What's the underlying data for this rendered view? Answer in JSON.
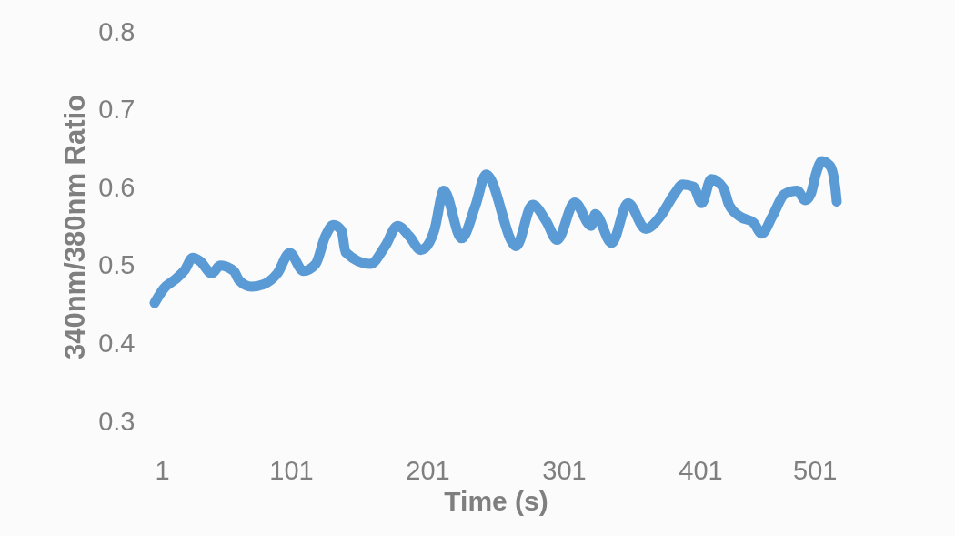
{
  "chart_data": {
    "type": "line",
    "xlabel": "Time (s)",
    "ylabel": "340nm/380nm Ratio",
    "xlim": [
      1,
      501
    ],
    "xticks": [
      1,
      101,
      201,
      301,
      401,
      501
    ],
    "ylim": [
      0.3,
      0.8
    ],
    "yticks": [
      0.3,
      0.4,
      0.5,
      0.6,
      0.7,
      0.8
    ],
    "grid": false,
    "series": [
      {
        "color": "#5b9bd5",
        "x": [
          1,
          8,
          16,
          23,
          29,
          34,
          43,
          49,
          59,
          63,
          72,
          81,
          91,
          100,
          110,
          119,
          126,
          132,
          138,
          141,
          159,
          170,
          179,
          188,
          196,
          199,
          206,
          213,
          226,
          236,
          244,
          266,
          278,
          288,
          296,
          309,
          321,
          324,
          336,
          348,
          361,
          372,
          382,
          388,
          396,
          402,
          409,
          418,
          422,
          430,
          440,
          446,
          454,
          463,
          472,
          478,
          482,
          486,
          490,
          496,
          500,
          501
        ],
        "values": [
          0.452,
          0.471,
          0.482,
          0.494,
          0.51,
          0.506,
          0.49,
          0.5,
          0.493,
          0.481,
          0.473,
          0.476,
          0.49,
          0.516,
          0.493,
          0.502,
          0.537,
          0.552,
          0.545,
          0.517,
          0.502,
          0.525,
          0.551,
          0.537,
          0.52,
          0.522,
          0.545,
          0.596,
          0.535,
          0.576,
          0.617,
          0.525,
          0.578,
          0.557,
          0.533,
          0.581,
          0.551,
          0.566,
          0.529,
          0.58,
          0.547,
          0.564,
          0.592,
          0.604,
          0.601,
          0.58,
          0.611,
          0.599,
          0.578,
          0.563,
          0.555,
          0.541,
          0.564,
          0.592,
          0.596,
          0.584,
          0.592,
          0.619,
          0.634,
          0.628,
          0.599,
          0.582
        ]
      }
    ]
  }
}
